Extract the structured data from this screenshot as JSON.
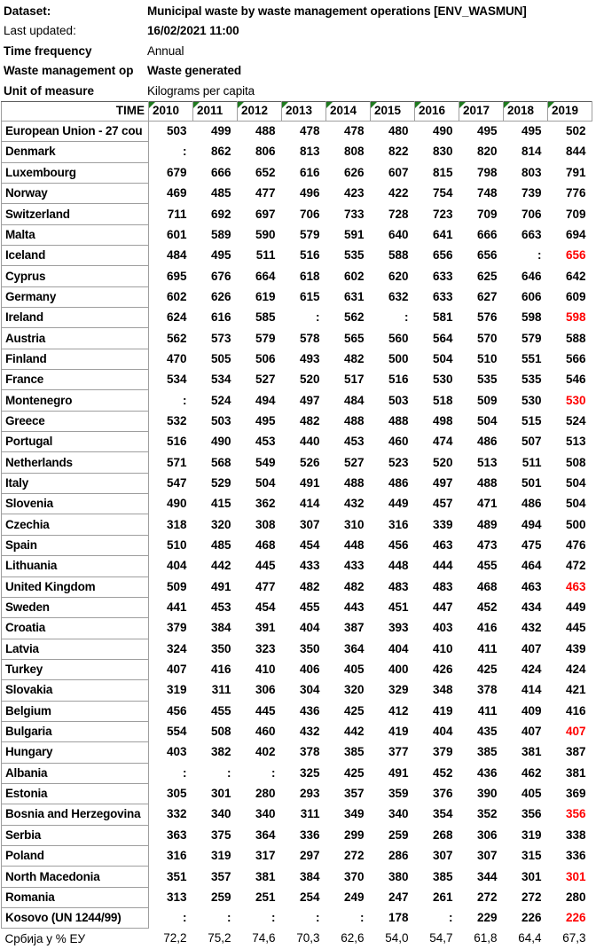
{
  "info": {
    "rows": [
      {
        "label": "Dataset:",
        "value": "Municipal waste by waste management operations [ENV_WASMUN]",
        "label_bold": true,
        "value_bold": true
      },
      {
        "label": "Last updated:",
        "value": "16/02/2021 11:00",
        "label_bold": false,
        "value_bold": true
      },
      {
        "label": "Time frequency",
        "value": "Annual",
        "label_bold": true,
        "value_bold": false
      },
      {
        "label": "Waste management op",
        "value": "Waste generated",
        "label_bold": true,
        "value_bold": true
      },
      {
        "label": "Unit of measure",
        "value": "Kilograms per capita",
        "label_bold": true,
        "value_bold": false
      }
    ]
  },
  "table": {
    "time_label": "TIME",
    "years": [
      "2010",
      "2011",
      "2012",
      "2013",
      "2014",
      "2015",
      "2016",
      "2017",
      "2018",
      "2019"
    ],
    "missing_symbol": ":",
    "colors": {
      "value_text": "#000000",
      "flagged_value_red": "#ff0000",
      "year_triangle_green": "#1f7a1f",
      "cell_border_gray": "#9e9e9e"
    },
    "rows": [
      {
        "name": "European Union - 27 cou",
        "values": [
          "503",
          "499",
          "488",
          "478",
          "478",
          "480",
          "490",
          "495",
          "495",
          "502"
        ],
        "red": []
      },
      {
        "name": "Denmark",
        "values": [
          ":",
          "862",
          "806",
          "813",
          "808",
          "822",
          "830",
          "820",
          "814",
          "844"
        ],
        "red": []
      },
      {
        "name": "Luxembourg",
        "values": [
          "679",
          "666",
          "652",
          "616",
          "626",
          "607",
          "815",
          "798",
          "803",
          "791"
        ],
        "red": []
      },
      {
        "name": "Norway",
        "values": [
          "469",
          "485",
          "477",
          "496",
          "423",
          "422",
          "754",
          "748",
          "739",
          "776"
        ],
        "red": []
      },
      {
        "name": "Switzerland",
        "values": [
          "711",
          "692",
          "697",
          "706",
          "733",
          "728",
          "723",
          "709",
          "706",
          "709"
        ],
        "red": []
      },
      {
        "name": "Malta",
        "values": [
          "601",
          "589",
          "590",
          "579",
          "591",
          "640",
          "641",
          "666",
          "663",
          "694"
        ],
        "red": []
      },
      {
        "name": "Iceland",
        "values": [
          "484",
          "495",
          "511",
          "516",
          "535",
          "588",
          "656",
          "656",
          ":",
          "656"
        ],
        "red": [
          9
        ]
      },
      {
        "name": "Cyprus",
        "values": [
          "695",
          "676",
          "664",
          "618",
          "602",
          "620",
          "633",
          "625",
          "646",
          "642"
        ],
        "red": []
      },
      {
        "name": "Germany",
        "values": [
          "602",
          "626",
          "619",
          "615",
          "631",
          "632",
          "633",
          "627",
          "606",
          "609"
        ],
        "red": []
      },
      {
        "name": "Ireland",
        "values": [
          "624",
          "616",
          "585",
          ":",
          "562",
          ":",
          "581",
          "576",
          "598",
          "598"
        ],
        "red": [
          9
        ]
      },
      {
        "name": "Austria",
        "values": [
          "562",
          "573",
          "579",
          "578",
          "565",
          "560",
          "564",
          "570",
          "579",
          "588"
        ],
        "red": []
      },
      {
        "name": "Finland",
        "values": [
          "470",
          "505",
          "506",
          "493",
          "482",
          "500",
          "504",
          "510",
          "551",
          "566"
        ],
        "red": []
      },
      {
        "name": "France",
        "values": [
          "534",
          "534",
          "527",
          "520",
          "517",
          "516",
          "530",
          "535",
          "535",
          "546"
        ],
        "red": []
      },
      {
        "name": "Montenegro",
        "values": [
          ":",
          "524",
          "494",
          "497",
          "484",
          "503",
          "518",
          "509",
          "530",
          "530"
        ],
        "red": [
          9
        ]
      },
      {
        "name": "Greece",
        "values": [
          "532",
          "503",
          "495",
          "482",
          "488",
          "488",
          "498",
          "504",
          "515",
          "524"
        ],
        "red": []
      },
      {
        "name": "Portugal",
        "values": [
          "516",
          "490",
          "453",
          "440",
          "453",
          "460",
          "474",
          "486",
          "507",
          "513"
        ],
        "red": []
      },
      {
        "name": "Netherlands",
        "values": [
          "571",
          "568",
          "549",
          "526",
          "527",
          "523",
          "520",
          "513",
          "511",
          "508"
        ],
        "red": []
      },
      {
        "name": "Italy",
        "values": [
          "547",
          "529",
          "504",
          "491",
          "488",
          "486",
          "497",
          "488",
          "501",
          "504"
        ],
        "red": []
      },
      {
        "name": "Slovenia",
        "values": [
          "490",
          "415",
          "362",
          "414",
          "432",
          "449",
          "457",
          "471",
          "486",
          "504"
        ],
        "red": []
      },
      {
        "name": "Czechia",
        "values": [
          "318",
          "320",
          "308",
          "307",
          "310",
          "316",
          "339",
          "489",
          "494",
          "500"
        ],
        "red": []
      },
      {
        "name": "Spain",
        "values": [
          "510",
          "485",
          "468",
          "454",
          "448",
          "456",
          "463",
          "473",
          "475",
          "476"
        ],
        "red": []
      },
      {
        "name": "Lithuania",
        "values": [
          "404",
          "442",
          "445",
          "433",
          "433",
          "448",
          "444",
          "455",
          "464",
          "472"
        ],
        "red": []
      },
      {
        "name": "United Kingdom",
        "values": [
          "509",
          "491",
          "477",
          "482",
          "482",
          "483",
          "483",
          "468",
          "463",
          "463"
        ],
        "red": [
          9
        ]
      },
      {
        "name": "Sweden",
        "values": [
          "441",
          "453",
          "454",
          "455",
          "443",
          "451",
          "447",
          "452",
          "434",
          "449"
        ],
        "red": []
      },
      {
        "name": "Croatia",
        "values": [
          "379",
          "384",
          "391",
          "404",
          "387",
          "393",
          "403",
          "416",
          "432",
          "445"
        ],
        "red": []
      },
      {
        "name": "Latvia",
        "values": [
          "324",
          "350",
          "323",
          "350",
          "364",
          "404",
          "410",
          "411",
          "407",
          "439"
        ],
        "red": []
      },
      {
        "name": "Turkey",
        "values": [
          "407",
          "416",
          "410",
          "406",
          "405",
          "400",
          "426",
          "425",
          "424",
          "424"
        ],
        "red": []
      },
      {
        "name": "Slovakia",
        "values": [
          "319",
          "311",
          "306",
          "304",
          "320",
          "329",
          "348",
          "378",
          "414",
          "421"
        ],
        "red": []
      },
      {
        "name": "Belgium",
        "values": [
          "456",
          "455",
          "445",
          "436",
          "425",
          "412",
          "419",
          "411",
          "409",
          "416"
        ],
        "red": []
      },
      {
        "name": "Bulgaria",
        "values": [
          "554",
          "508",
          "460",
          "432",
          "442",
          "419",
          "404",
          "435",
          "407",
          "407"
        ],
        "red": [
          9
        ]
      },
      {
        "name": "Hungary",
        "values": [
          "403",
          "382",
          "402",
          "378",
          "385",
          "377",
          "379",
          "385",
          "381",
          "387"
        ],
        "red": []
      },
      {
        "name": "Albania",
        "values": [
          ":",
          ":",
          ":",
          "325",
          "425",
          "491",
          "452",
          "436",
          "462",
          "381"
        ],
        "red": []
      },
      {
        "name": "Estonia",
        "values": [
          "305",
          "301",
          "280",
          "293",
          "357",
          "359",
          "376",
          "390",
          "405",
          "369"
        ],
        "red": []
      },
      {
        "name": "Bosnia and Herzegovina",
        "values": [
          "332",
          "340",
          "340",
          "311",
          "349",
          "340",
          "354",
          "352",
          "356",
          "356"
        ],
        "red": [
          9
        ]
      },
      {
        "name": "Serbia",
        "values": [
          "363",
          "375",
          "364",
          "336",
          "299",
          "259",
          "268",
          "306",
          "319",
          "338"
        ],
        "red": []
      },
      {
        "name": "Poland",
        "values": [
          "316",
          "319",
          "317",
          "297",
          "272",
          "286",
          "307",
          "307",
          "315",
          "336"
        ],
        "red": []
      },
      {
        "name": "North Macedonia",
        "values": [
          "351",
          "357",
          "381",
          "384",
          "370",
          "380",
          "385",
          "344",
          "301",
          "301"
        ],
        "red": [
          9
        ]
      },
      {
        "name": "Romania",
        "values": [
          "313",
          "259",
          "251",
          "254",
          "249",
          "247",
          "261",
          "272",
          "272",
          "280"
        ],
        "red": []
      },
      {
        "name": "Kosovo (UN 1244/99)",
        "values": [
          ":",
          ":",
          ":",
          ":",
          ":",
          "178",
          ":",
          "229",
          "226",
          "226"
        ],
        "red": [
          9
        ]
      }
    ],
    "footer": {
      "name": "Србија у % ЕУ",
      "values": [
        "72,2",
        "75,2",
        "74,6",
        "70,3",
        "62,6",
        "54,0",
        "54,7",
        "61,8",
        "64,4",
        "67,3"
      ]
    }
  }
}
